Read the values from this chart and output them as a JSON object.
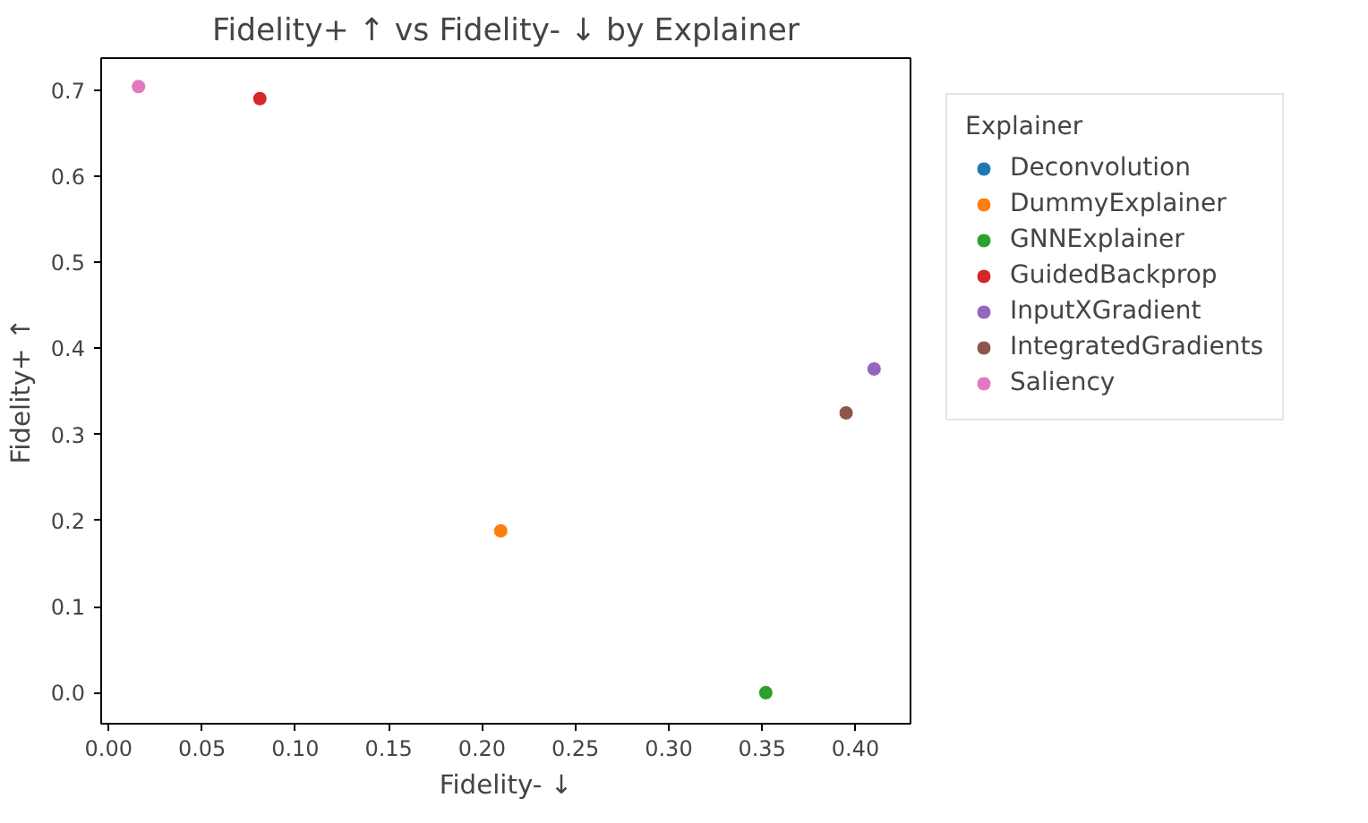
{
  "chart_data": {
    "type": "scatter",
    "title": "Fidelity+ ↑ vs Fidelity- ↓ by Explainer",
    "xlabel": "Fidelity- ↓",
    "ylabel": "Fidelity+ ↑",
    "legend_title": "Explainer",
    "legend": "right",
    "marker": "circle",
    "grid": false,
    "xlim": [
      -0.004,
      0.4295
    ],
    "ylim": [
      -0.036,
      0.737
    ],
    "xticks": [
      {
        "value": 0,
        "label": "0.00"
      },
      0.05,
      {
        "value": 0.1,
        "label": "0.10"
      },
      0.15,
      {
        "value": 0.2,
        "label": "0.20"
      },
      0.25,
      {
        "value": 0.3,
        "label": "0.30"
      },
      0.35,
      {
        "value": 0.4,
        "label": "0.40"
      }
    ],
    "yticks": [
      {
        "value": 0,
        "label": "0.0"
      },
      0.1,
      0.2,
      0.3,
      0.4,
      0.5,
      0.6,
      0.7
    ],
    "series": [
      {
        "name": "Deconvolution",
        "color": "#1f77b4",
        "x": [
          null
        ],
        "values": [
          null
        ]
      },
      {
        "name": "DummyExplainer",
        "color": "#ff7f0e",
        "x": [
          0.21
        ],
        "values": [
          0.188
        ]
      },
      {
        "name": "GNNExplainer",
        "color": "#2ca02c",
        "x": [
          0.352
        ],
        "values": [
          0.0
        ]
      },
      {
        "name": "GuidedBackprop",
        "color": "#d62728",
        "x": [
          0.081
        ],
        "values": [
          0.69
        ]
      },
      {
        "name": "InputXGradient",
        "color": "#9467bd",
        "x": [
          0.41
        ],
        "values": [
          0.376
        ]
      },
      {
        "name": "IntegratedGradients",
        "color": "#8c564b",
        "x": [
          0.395
        ],
        "values": [
          0.325
        ]
      },
      {
        "name": "Saliency",
        "color": "#e377c2",
        "x": [
          0.016
        ],
        "values": [
          0.704
        ]
      }
    ]
  }
}
